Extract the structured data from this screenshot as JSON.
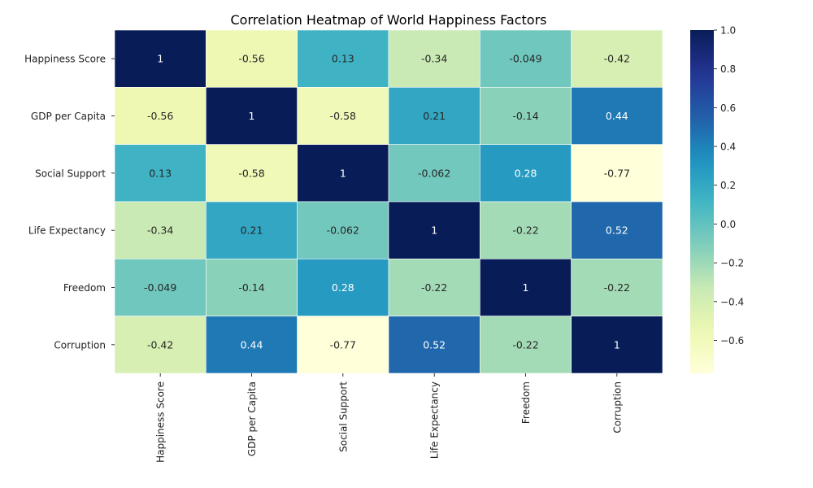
{
  "chart_data": {
    "type": "heatmap",
    "title": "Correlation Heatmap of World Happiness Factors",
    "row_labels": [
      "Happiness Score",
      "GDP per Capita",
      "Social Support",
      "Life Expectancy",
      "Freedom",
      "Corruption"
    ],
    "col_labels": [
      "Happiness Score",
      "GDP per Capita",
      "Social Support",
      "Life Expectancy",
      "Freedom",
      "Corruption"
    ],
    "values": [
      [
        1,
        -0.56,
        0.13,
        -0.34,
        -0.049,
        -0.42
      ],
      [
        -0.56,
        1,
        -0.58,
        0.21,
        -0.14,
        0.44
      ],
      [
        0.13,
        -0.58,
        1,
        -0.062,
        0.28,
        -0.77
      ],
      [
        -0.34,
        0.21,
        -0.062,
        1,
        -0.22,
        0.52
      ],
      [
        -0.049,
        -0.14,
        0.28,
        -0.22,
        1,
        -0.22
      ],
      [
        -0.42,
        0.44,
        -0.77,
        0.52,
        -0.22,
        1
      ]
    ],
    "cell_labels": [
      [
        "1",
        "-0.56",
        "0.13",
        "-0.34",
        "-0.049",
        "-0.42"
      ],
      [
        "-0.56",
        "1",
        "-0.58",
        "0.21",
        "-0.14",
        "0.44"
      ],
      [
        "0.13",
        "-0.58",
        "1",
        "-0.062",
        "0.28",
        "-0.77"
      ],
      [
        "-0.34",
        "0.21",
        "-0.062",
        "1",
        "-0.22",
        "0.52"
      ],
      [
        "-0.049",
        "-0.14",
        "0.28",
        "-0.22",
        "1",
        "-0.22"
      ],
      [
        "-0.42",
        "0.44",
        "-0.77",
        "0.52",
        "-0.22",
        "1"
      ]
    ],
    "colormap": "YlGnBu",
    "color_range": [
      -0.77,
      1.0
    ],
    "colorbar": {
      "ticks": [
        1.0,
        0.8,
        0.6,
        0.4,
        0.2,
        0.0,
        -0.2,
        -0.4,
        -0.6
      ],
      "tick_labels": [
        "1.0",
        "0.8",
        "0.6",
        "0.4",
        "0.2",
        "0.0",
        "−0.2",
        "−0.4",
        "−0.6"
      ],
      "placement": "right"
    },
    "gridlines": "white cell borders"
  }
}
